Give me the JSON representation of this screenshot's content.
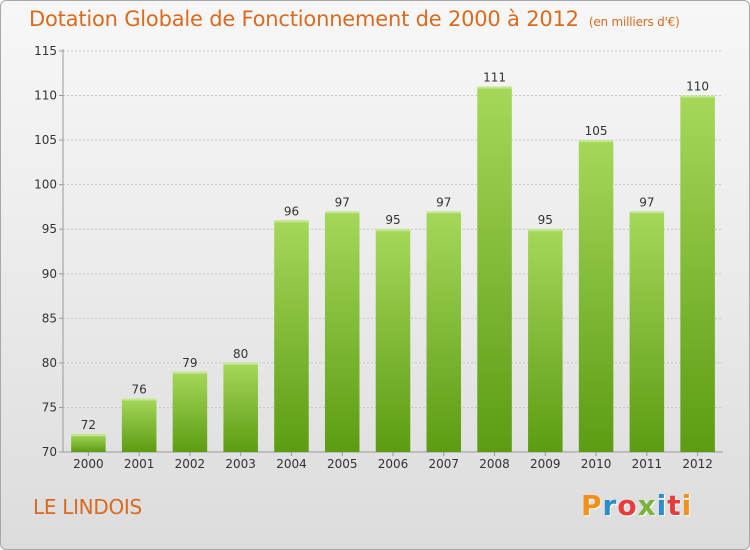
{
  "title": "Dotation Globale de Fonctionnement de 2000 à 2012",
  "subtitle": "(en milliers d'€)",
  "commune": "LE LINDOIS",
  "logo": {
    "text": "Proxiti",
    "colors": [
      "#f39019",
      "#2e8ccb",
      "#e63c3c",
      "#79b53a",
      "#2e8ccb",
      "#e63c3c",
      "#f39019"
    ]
  },
  "chart_data": {
    "type": "bar",
    "categories": [
      "2000",
      "2001",
      "2002",
      "2003",
      "2004",
      "2005",
      "2006",
      "2007",
      "2008",
      "2009",
      "2010",
      "2011",
      "2012"
    ],
    "values": [
      72,
      76,
      79,
      80,
      96,
      97,
      95,
      97,
      111,
      95,
      105,
      97,
      110
    ],
    "ylim": [
      70,
      115
    ],
    "yticks": [
      70,
      75,
      80,
      85,
      90,
      95,
      100,
      105,
      110,
      115
    ],
    "grid": true,
    "bar_color": "#7cbb2e"
  }
}
